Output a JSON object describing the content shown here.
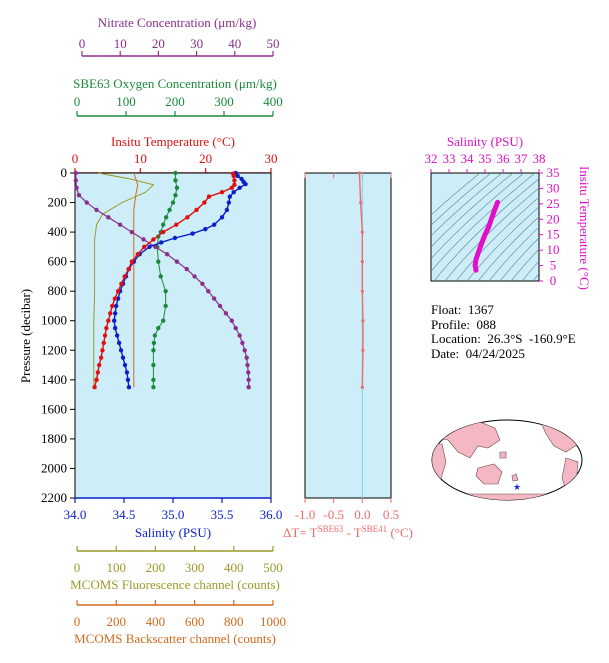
{
  "colors": {
    "nitrate": "#8b2f8b",
    "oxygen": "#1a8a3a",
    "temperature": "#e01010",
    "salinity": "#0a1ecc",
    "fluorescence": "#9a9a28",
    "backscatter": "#d2691e",
    "delta_t": "#f06a6a",
    "ts_line": "#e010c8",
    "panel_bg": "#cdeef8"
  },
  "axes": {
    "nitrate": {
      "label": "Nitrate Concentration (μm/kg)",
      "ticks": [
        "0",
        "10",
        "20",
        "30",
        "40",
        "50"
      ]
    },
    "oxygen": {
      "label": "SBE63 Oxygen Concentration (μm/kg)",
      "ticks": [
        "0",
        "100",
        "200",
        "300",
        "400"
      ]
    },
    "temperature": {
      "label": "Insitu Temperature (°C)",
      "ticks": [
        "0",
        "10",
        "20",
        "30"
      ]
    },
    "pressure": {
      "label": "Pressure (decibar)",
      "ticks": [
        "0",
        "200",
        "400",
        "600",
        "800",
        "1000",
        "1200",
        "1400",
        "1600",
        "1800",
        "2000",
        "2200"
      ]
    },
    "salinity": {
      "label": "Salinity (PSU)",
      "ticks": [
        "34.0",
        "34.5",
        "35.0",
        "35.5",
        "36.0"
      ]
    },
    "fluorescence": {
      "label": "MCOMS Fluorescence channel (counts)",
      "ticks": [
        "0",
        "100",
        "200",
        "300",
        "400",
        "500"
      ]
    },
    "backscatter": {
      "label": "MCOMS Backscatter channel (counts)",
      "ticks": [
        "0",
        "200",
        "400",
        "600",
        "800",
        "1000"
      ]
    },
    "delta_t": {
      "label_main": "ΔT= T",
      "sup1": "SBE63",
      "label_mid": " - T",
      "sup2": "SBE41",
      "label_end": " (°C)",
      "ticks": [
        "-1.0",
        "-0.5",
        "0.0",
        "0.5"
      ]
    },
    "ts_salinity": {
      "label": "Salinity (PSU)",
      "ticks": [
        "32",
        "33",
        "34",
        "35",
        "36",
        "37",
        "38"
      ]
    },
    "ts_temperature": {
      "label": "Insitu Temperature (°C)",
      "ticks": [
        "0",
        "5",
        "10",
        "15",
        "20",
        "25",
        "30",
        "35"
      ]
    }
  },
  "info": {
    "float": "Float:  1367",
    "profile": "Profile:  088",
    "location": "Location:  26.3°S  -160.9°E",
    "date": "Date:  04/24/2025"
  },
  "chart_data": [
    {
      "type": "line",
      "name": "profile",
      "ylim": [
        2200,
        0
      ],
      "series": [
        {
          "name": "Insitu Temperature (°C)",
          "xlim": [
            0,
            30
          ],
          "points": [
            [
              24.2,
              5
            ],
            [
              24.3,
              20
            ],
            [
              24.4,
              50
            ],
            [
              24.4,
              80
            ],
            [
              24.0,
              100
            ],
            [
              22.5,
              130
            ],
            [
              20.5,
              160
            ],
            [
              19.8,
              200
            ],
            [
              18.6,
              250
            ],
            [
              17.2,
              300
            ],
            [
              15.5,
              350
            ],
            [
              13.5,
              400
            ],
            [
              12.0,
              450
            ],
            [
              10.6,
              500
            ],
            [
              9.6,
              550
            ],
            [
              8.7,
              600
            ],
            [
              8.2,
              650
            ],
            [
              7.6,
              700
            ],
            [
              7.1,
              750
            ],
            [
              6.6,
              800
            ],
            [
              6.1,
              850
            ],
            [
              5.7,
              900
            ],
            [
              5.4,
              950
            ],
            [
              5.1,
              1000
            ],
            [
              4.8,
              1050
            ],
            [
              4.6,
              1100
            ],
            [
              4.4,
              1150
            ],
            [
              4.2,
              1200
            ],
            [
              4.0,
              1250
            ],
            [
              3.7,
              1300
            ],
            [
              3.5,
              1350
            ],
            [
              3.3,
              1400
            ],
            [
              3.0,
              1450
            ]
          ]
        },
        {
          "name": "Salinity (PSU)",
          "xlim": [
            34.0,
            36.0
          ],
          "points": [
            [
              35.64,
              0
            ],
            [
              35.66,
              20
            ],
            [
              35.7,
              40
            ],
            [
              35.72,
              60
            ],
            [
              35.74,
              75
            ],
            [
              35.68,
              100
            ],
            [
              35.62,
              130
            ],
            [
              35.58,
              160
            ],
            [
              35.57,
              200
            ],
            [
              35.55,
              250
            ],
            [
              35.5,
              300
            ],
            [
              35.42,
              350
            ],
            [
              35.33,
              380
            ],
            [
              35.2,
              410
            ],
            [
              35.02,
              440
            ],
            [
              34.88,
              470
            ],
            [
              34.76,
              500
            ],
            [
              34.66,
              550
            ],
            [
              34.6,
              600
            ],
            [
              34.55,
              650
            ],
            [
              34.52,
              700
            ],
            [
              34.49,
              750
            ],
            [
              34.46,
              800
            ],
            [
              34.44,
              850
            ],
            [
              34.42,
              900
            ],
            [
              34.41,
              950
            ],
            [
              34.4,
              1000
            ],
            [
              34.41,
              1050
            ],
            [
              34.43,
              1100
            ],
            [
              34.45,
              1150
            ],
            [
              34.47,
              1200
            ],
            [
              34.49,
              1250
            ],
            [
              34.51,
              1300
            ],
            [
              34.53,
              1350
            ],
            [
              34.54,
              1400
            ],
            [
              34.55,
              1450
            ]
          ]
        },
        {
          "name": "Nitrate Concentration (μm/kg)",
          "xlim": [
            0,
            50
          ],
          "points": [
            [
              0.2,
              0
            ],
            [
              0.2,
              50
            ],
            [
              0.4,
              100
            ],
            [
              1.0,
              150
            ],
            [
              3.0,
              200
            ],
            [
              5.5,
              250
            ],
            [
              8.5,
              300
            ],
            [
              11.5,
              350
            ],
            [
              14.5,
              400
            ],
            [
              17.5,
              450
            ],
            [
              20.5,
              500
            ],
            [
              23.5,
              550
            ],
            [
              26.0,
              600
            ],
            [
              28.5,
              650
            ],
            [
              30.5,
              700
            ],
            [
              32.5,
              750
            ],
            [
              34.0,
              800
            ],
            [
              35.5,
              850
            ],
            [
              37.0,
              900
            ],
            [
              38.5,
              950
            ],
            [
              40.0,
              1000
            ],
            [
              41.0,
              1050
            ],
            [
              42.0,
              1100
            ],
            [
              42.7,
              1150
            ],
            [
              43.3,
              1200
            ],
            [
              43.8,
              1250
            ],
            [
              44.0,
              1300
            ],
            [
              44.2,
              1350
            ],
            [
              44.3,
              1400
            ],
            [
              44.3,
              1450
            ]
          ]
        },
        {
          "name": "SBE63 Oxygen Concentration (μm/kg)",
          "xlim": [
            0,
            400
          ],
          "points": [
            [
              205,
              0
            ],
            [
              205,
              50
            ],
            [
              208,
              100
            ],
            [
              205,
              150
            ],
            [
              200,
              200
            ],
            [
              193,
              250
            ],
            [
              186,
              300
            ],
            [
              180,
              350
            ],
            [
              175,
              400
            ],
            [
              170,
              430
            ],
            [
              168,
              500
            ],
            [
              170,
              600
            ],
            [
              175,
              700
            ],
            [
              185,
              800
            ],
            [
              185,
              900
            ],
            [
              180,
              1000
            ],
            [
              170,
              1050
            ],
            [
              163,
              1100
            ],
            [
              161,
              1150
            ],
            [
              160,
              1200
            ],
            [
              160,
              1300
            ],
            [
              160,
              1400
            ],
            [
              160,
              1450
            ]
          ]
        },
        {
          "name": "MCOMS Fluorescence channel (counts)",
          "xlim": [
            0,
            500
          ],
          "points": [
            [
              60,
              0
            ],
            [
              140,
              40
            ],
            [
              200,
              80
            ],
            [
              180,
              130
            ],
            [
              120,
              200
            ],
            [
              70,
              280
            ],
            [
              55,
              350
            ],
            [
              50,
              450
            ],
            [
              50,
              600
            ],
            [
              50,
              800
            ],
            [
              48,
              1000
            ],
            [
              48,
              1200
            ],
            [
              48,
              1450
            ]
          ]
        },
        {
          "name": "MCOMS Backscatter channel (counts)",
          "xlim": [
            0,
            1000
          ],
          "points": [
            [
              300,
              0
            ],
            [
              320,
              80
            ],
            [
              310,
              150
            ],
            [
              300,
              250
            ],
            [
              300,
              400
            ],
            [
              300,
              600
            ],
            [
              300,
              800
            ],
            [
              300,
              1000
            ],
            [
              300,
              1200
            ],
            [
              300,
              1450
            ]
          ]
        }
      ]
    },
    {
      "type": "line",
      "name": "delta_t",
      "xlim": [
        -1.0,
        0.5
      ],
      "ylim": [
        2200,
        0
      ],
      "points": [
        [
          -0.05,
          0
        ],
        [
          -0.03,
          200
        ],
        [
          0.0,
          400
        ],
        [
          0.0,
          600
        ],
        [
          0.0,
          800
        ],
        [
          0.01,
          1000
        ],
        [
          0.01,
          1200
        ],
        [
          0.0,
          1450
        ]
      ]
    },
    {
      "type": "line",
      "name": "ts_diagram",
      "xlim": [
        32,
        38
      ],
      "ylim": [
        0,
        35
      ],
      "points": [
        [
          34.5,
          3.5
        ],
        [
          34.45,
          5
        ],
        [
          34.5,
          7
        ],
        [
          34.62,
          9
        ],
        [
          34.8,
          12
        ],
        [
          35.0,
          15
        ],
        [
          35.2,
          17.5
        ],
        [
          35.35,
          20
        ],
        [
          35.5,
          22.5
        ],
        [
          35.6,
          24
        ],
        [
          35.7,
          25.5
        ]
      ]
    }
  ]
}
